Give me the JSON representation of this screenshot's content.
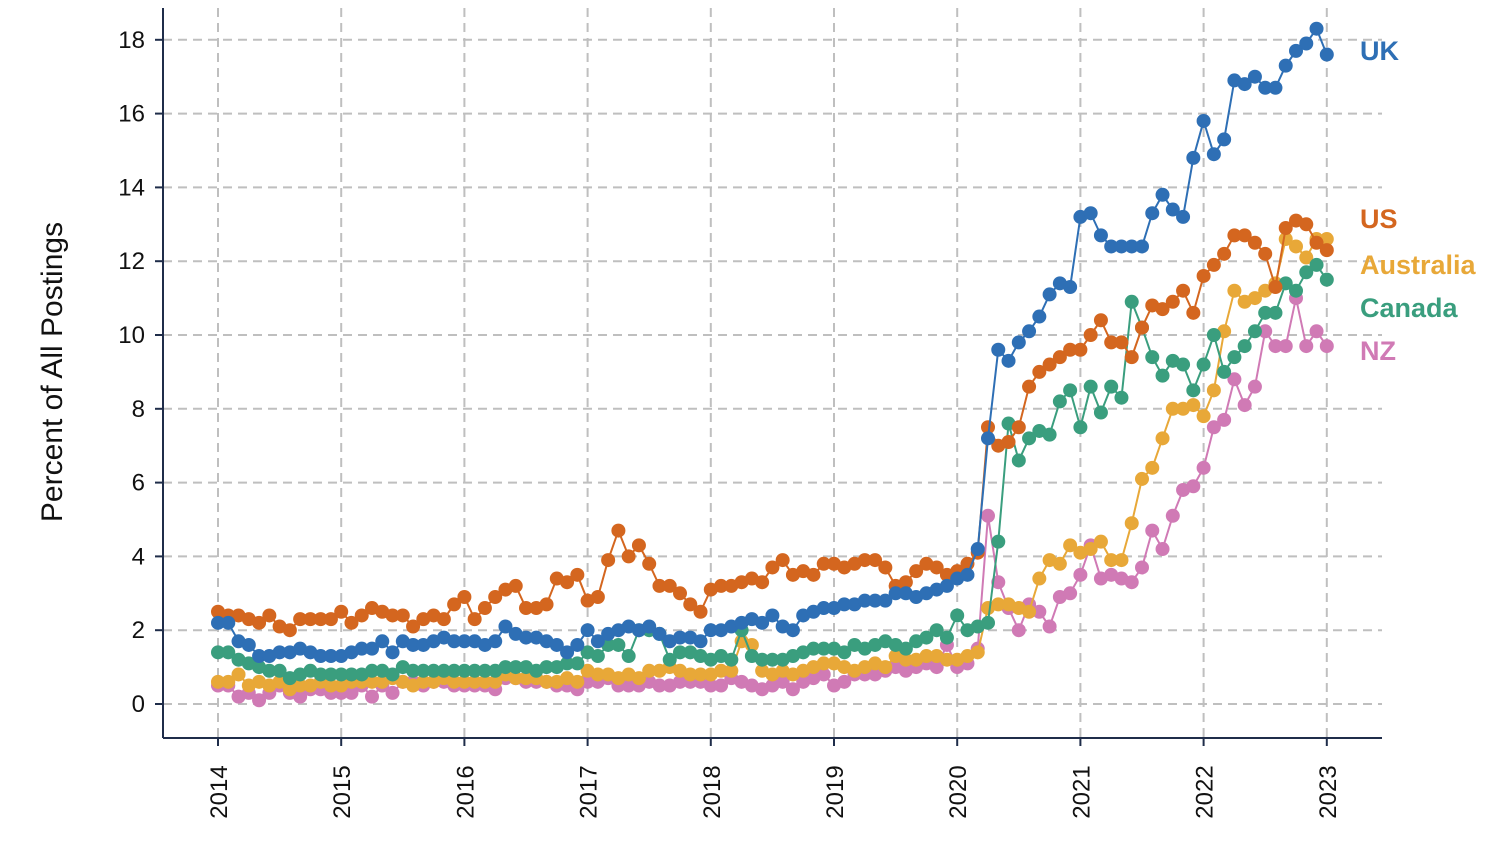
{
  "chart_data": {
    "type": "line",
    "title": "",
    "xlabel": "",
    "ylabel": "Percent of All Postings",
    "xlim": [
      2014,
      2023
    ],
    "ylim": [
      -1,
      19
    ],
    "x_start": 2014,
    "x_step_months": 1,
    "xticks": [
      "2014",
      "2015",
      "2016",
      "2017",
      "2018",
      "2019",
      "2020",
      "2021",
      "2022",
      "2023"
    ],
    "yticks": [
      "0",
      "2",
      "4",
      "6",
      "8",
      "10",
      "12",
      "14",
      "16",
      "18"
    ],
    "grid": true,
    "legend_placement": "right (inline labels)",
    "series": [
      {
        "name": "UK",
        "color": "#2e6fb5",
        "values": [
          2.2,
          2.2,
          1.7,
          1.6,
          1.3,
          1.3,
          1.4,
          1.4,
          1.5,
          1.4,
          1.3,
          1.3,
          1.3,
          1.4,
          1.5,
          1.5,
          1.7,
          1.4,
          1.7,
          1.6,
          1.6,
          1.7,
          1.8,
          1.7,
          1.7,
          1.7,
          1.6,
          1.7,
          2.1,
          1.9,
          1.8,
          1.8,
          1.7,
          1.6,
          1.4,
          1.6,
          2.0,
          1.7,
          1.9,
          2.0,
          2.1,
          2.0,
          2.1,
          1.9,
          1.7,
          1.8,
          1.8,
          1.7,
          2.0,
          2.0,
          2.1,
          2.2,
          2.3,
          2.2,
          2.4,
          2.1,
          2.0,
          2.4,
          2.5,
          2.6,
          2.6,
          2.7,
          2.7,
          2.8,
          2.8,
          2.8,
          3.0,
          3.0,
          2.9,
          3.0,
          3.1,
          3.2,
          3.4,
          3.5,
          4.2,
          7.2,
          9.6,
          9.3,
          9.8,
          10.1,
          10.5,
          11.1,
          11.4,
          11.3,
          13.2,
          13.3,
          12.7,
          12.4,
          12.4,
          12.4,
          12.4,
          13.3,
          13.8,
          13.4,
          13.2,
          14.8,
          15.8,
          14.9,
          15.3,
          16.9,
          16.8,
          17.0,
          16.7,
          16.7,
          17.3,
          17.7,
          17.9,
          18.3,
          17.6
        ]
      },
      {
        "name": "US",
        "color": "#d4661f",
        "values": [
          2.5,
          2.4,
          2.4,
          2.3,
          2.2,
          2.4,
          2.1,
          2.0,
          2.3,
          2.3,
          2.3,
          2.3,
          2.5,
          2.2,
          2.4,
          2.6,
          2.5,
          2.4,
          2.4,
          2.1,
          2.3,
          2.4,
          2.3,
          2.7,
          2.9,
          2.3,
          2.6,
          2.9,
          3.1,
          3.2,
          2.6,
          2.6,
          2.7,
          3.4,
          3.3,
          3.5,
          2.8,
          2.9,
          3.9,
          4.7,
          4.0,
          4.3,
          3.8,
          3.2,
          3.2,
          3.0,
          2.7,
          2.5,
          3.1,
          3.2,
          3.2,
          3.3,
          3.4,
          3.3,
          3.7,
          3.9,
          3.5,
          3.6,
          3.5,
          3.8,
          3.8,
          3.7,
          3.8,
          3.9,
          3.9,
          3.7,
          3.2,
          3.3,
          3.6,
          3.8,
          3.7,
          3.5,
          3.6,
          3.8,
          4.1,
          7.5,
          7.0,
          7.1,
          7.5,
          8.6,
          9.0,
          9.2,
          9.4,
          9.6,
          9.6,
          10.0,
          10.4,
          9.8,
          9.8,
          9.4,
          10.2,
          10.8,
          10.7,
          10.9,
          11.2,
          10.6,
          11.6,
          11.9,
          12.2,
          12.7,
          12.7,
          12.5,
          12.2,
          11.3,
          12.9,
          13.1,
          13.0,
          12.5,
          12.3
        ]
      },
      {
        "name": "Australia",
        "color": "#e8a838",
        "values": [
          0.6,
          0.6,
          0.8,
          0.5,
          0.6,
          0.5,
          0.6,
          0.4,
          0.5,
          0.5,
          0.6,
          0.5,
          0.5,
          0.6,
          0.6,
          0.6,
          0.6,
          0.7,
          0.6,
          0.5,
          0.6,
          0.6,
          0.7,
          0.6,
          0.6,
          0.6,
          0.6,
          0.6,
          0.8,
          0.7,
          0.7,
          0.7,
          0.6,
          0.6,
          0.7,
          0.6,
          0.9,
          0.8,
          0.8,
          0.7,
          0.8,
          0.7,
          0.9,
          0.9,
          1.0,
          0.9,
          0.8,
          0.8,
          0.8,
          0.9,
          0.9,
          1.7,
          1.6,
          0.9,
          0.8,
          0.9,
          0.8,
          0.9,
          1.0,
          1.1,
          1.1,
          1.0,
          0.9,
          1.0,
          1.1,
          1.0,
          1.3,
          1.2,
          1.2,
          1.3,
          1.3,
          1.2,
          1.2,
          1.3,
          1.4,
          2.6,
          2.7,
          2.7,
          2.6,
          2.5,
          3.4,
          3.9,
          3.8,
          4.3,
          4.1,
          4.2,
          4.4,
          3.9,
          3.9,
          4.9,
          6.1,
          6.4,
          7.2,
          8.0,
          8.0,
          8.1,
          7.8,
          8.5,
          10.1,
          11.2,
          10.9,
          11.0,
          11.2,
          11.4,
          12.6,
          12.4,
          12.1,
          12.6,
          12.6
        ]
      },
      {
        "name": "Canada",
        "color": "#3a9e7e",
        "values": [
          1.4,
          1.4,
          1.2,
          1.1,
          1.0,
          0.9,
          0.9,
          0.7,
          0.8,
          0.9,
          0.8,
          0.8,
          0.8,
          0.8,
          0.8,
          0.9,
          0.9,
          0.8,
          1.0,
          0.9,
          0.9,
          0.9,
          0.9,
          0.9,
          0.9,
          0.9,
          0.9,
          0.9,
          1.0,
          1.0,
          1.0,
          0.9,
          1.0,
          1.0,
          1.1,
          1.1,
          1.4,
          1.3,
          1.6,
          1.6,
          1.3,
          2.0,
          2.0,
          1.9,
          1.2,
          1.4,
          1.4,
          1.3,
          1.2,
          1.3,
          1.2,
          2.0,
          1.3,
          1.2,
          1.2,
          1.2,
          1.3,
          1.4,
          1.5,
          1.5,
          1.5,
          1.4,
          1.6,
          1.5,
          1.6,
          1.7,
          1.6,
          1.5,
          1.7,
          1.8,
          2.0,
          1.8,
          2.4,
          2.0,
          2.1,
          2.2,
          4.4,
          7.6,
          6.6,
          7.2,
          7.4,
          7.3,
          8.2,
          8.5,
          7.5,
          8.6,
          7.9,
          8.6,
          8.3,
          10.9,
          10.2,
          9.4,
          8.9,
          9.3,
          9.2,
          8.5,
          9.2,
          10.0,
          9.0,
          9.4,
          9.7,
          10.1,
          10.6,
          10.6,
          11.4,
          11.2,
          11.7,
          11.9,
          11.5
        ]
      },
      {
        "name": "NZ",
        "color": "#d07ab5",
        "values": [
          0.5,
          0.5,
          0.2,
          0.3,
          0.1,
          0.3,
          0.5,
          0.3,
          0.2,
          0.4,
          0.4,
          0.3,
          0.3,
          0.3,
          0.5,
          0.2,
          0.5,
          0.3,
          0.6,
          0.6,
          0.5,
          0.6,
          0.6,
          0.5,
          0.5,
          0.5,
          0.5,
          0.4,
          0.7,
          0.7,
          0.6,
          0.6,
          0.6,
          0.5,
          0.5,
          0.4,
          0.6,
          0.6,
          0.7,
          0.5,
          0.5,
          0.5,
          0.6,
          0.5,
          0.5,
          0.6,
          0.6,
          0.6,
          0.5,
          0.5,
          0.7,
          0.6,
          0.5,
          0.4,
          0.5,
          0.6,
          0.4,
          0.6,
          0.7,
          0.8,
          0.5,
          0.6,
          0.8,
          0.8,
          0.8,
          0.9,
          1.0,
          0.9,
          1.0,
          1.1,
          1.0,
          1.6,
          1.0,
          1.1,
          1.5,
          5.1,
          3.3,
          2.6,
          2.0,
          2.7,
          2.5,
          2.1,
          2.9,
          3.0,
          3.5,
          4.3,
          3.4,
          3.5,
          3.4,
          3.3,
          3.7,
          4.7,
          4.2,
          5.1,
          5.8,
          5.9,
          6.4,
          7.5,
          7.7,
          8.8,
          8.1,
          8.6,
          10.1,
          9.7,
          9.7,
          11.0,
          9.7,
          10.1,
          9.7
        ]
      }
    ]
  }
}
